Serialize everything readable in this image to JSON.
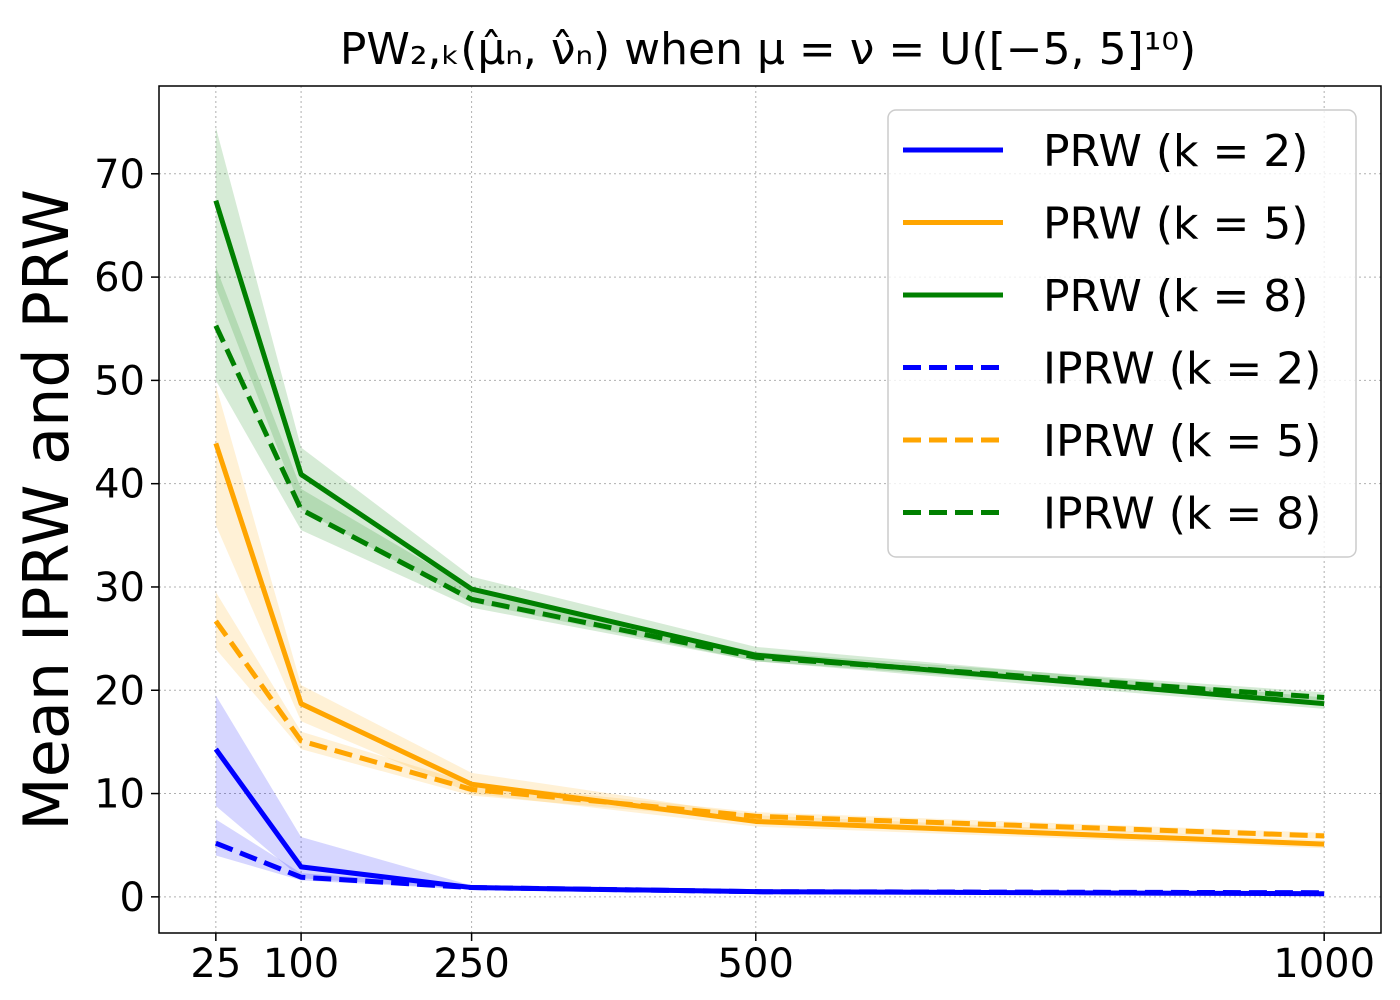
{
  "chart_data": {
    "type": "line",
    "title": "PW₂,ₖ(μ̂ₙ, ν̂ₙ) when μ = ν = U([−5, 5]¹⁰)",
    "xlabel": "",
    "ylabel": "Mean IPRW and PRW",
    "x": [
      25,
      100,
      250,
      500,
      1000
    ],
    "xticks": [
      "25",
      "100",
      "250",
      "500",
      "1000"
    ],
    "yticks": [
      "0",
      "10",
      "20",
      "30",
      "40",
      "50",
      "60",
      "70"
    ],
    "xlim": [
      -25,
      1050
    ],
    "ylim": [
      -3.5,
      78.5
    ],
    "grid": true,
    "legend_position": "top-right",
    "series": [
      {
        "name": "PRW (k = 2)",
        "color": "#0000ff",
        "style": "solid",
        "values": [
          14.3,
          2.9,
          0.9,
          0.5,
          0.3
        ],
        "lower": [
          8.8,
          1.8,
          0.7,
          0.3,
          0.2
        ],
        "upper": [
          19.5,
          5.8,
          1.1,
          0.7,
          0.5
        ]
      },
      {
        "name": "PRW (k = 5)",
        "color": "#ffa500",
        "style": "solid",
        "values": [
          43.9,
          18.7,
          10.9,
          7.3,
          5.1
        ],
        "lower": [
          36.0,
          17.0,
          10.0,
          6.8,
          4.7
        ],
        "upper": [
          49.5,
          20.5,
          12.0,
          7.9,
          5.5
        ]
      },
      {
        "name": "PRW (k = 8)",
        "color": "#008000",
        "style": "solid",
        "values": [
          67.4,
          40.9,
          29.8,
          23.4,
          18.7
        ],
        "lower": [
          59.0,
          37.5,
          28.5,
          22.8,
          18.2
        ],
        "upper": [
          74.5,
          43.5,
          31.0,
          24.2,
          19.3
        ]
      },
      {
        "name": "IPRW (k = 2)",
        "color": "#0000ff",
        "style": "dashed",
        "values": [
          5.2,
          1.9,
          0.9,
          0.5,
          0.4
        ],
        "lower": [
          4.0,
          1.6,
          0.7,
          0.3,
          0.3
        ],
        "upper": [
          7.5,
          2.3,
          1.1,
          0.7,
          0.5
        ]
      },
      {
        "name": "IPRW (k = 5)",
        "color": "#ffa500",
        "style": "dashed",
        "values": [
          26.7,
          15.1,
          10.4,
          7.8,
          5.9
        ],
        "lower": [
          24.0,
          14.3,
          9.8,
          7.4,
          5.6
        ],
        "upper": [
          29.5,
          16.0,
          11.0,
          8.2,
          6.2
        ]
      },
      {
        "name": "IPRW (k = 8)",
        "color": "#008000",
        "style": "dashed",
        "values": [
          55.3,
          37.5,
          28.8,
          23.2,
          19.3
        ],
        "lower": [
          50.0,
          35.5,
          28.0,
          22.8,
          18.8
        ],
        "upper": [
          61.0,
          39.5,
          29.8,
          23.7,
          19.8
        ]
      }
    ]
  }
}
